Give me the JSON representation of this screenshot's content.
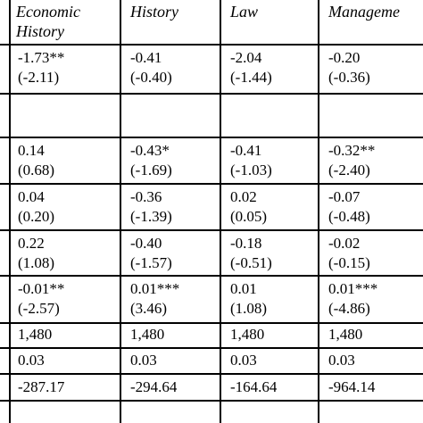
{
  "table": {
    "headers": [
      "Economic",
      "History",
      "History",
      "Law",
      "Manageme"
    ],
    "rows": [
      {
        "c1": [
          "-1.73**",
          "(-2.11)"
        ],
        "c2": [
          "-0.41",
          "(-0.40)"
        ],
        "c3": [
          "-2.04",
          "(-1.44)"
        ],
        "c4": [
          "-0.20",
          "(-0.36)"
        ]
      },
      {
        "c1": [
          "",
          ""
        ],
        "c2": [
          "",
          ""
        ],
        "c3": [
          "",
          ""
        ],
        "c4": [
          "",
          ""
        ]
      },
      {
        "c1": [
          "0.14",
          "(0.68)"
        ],
        "c2": [
          "-0.43*",
          "(-1.69)"
        ],
        "c3": [
          "-0.41",
          "(-1.03)"
        ],
        "c4": [
          "-0.32**",
          "(-2.40)"
        ]
      },
      {
        "c1": [
          "0.04",
          "(0.20)"
        ],
        "c2": [
          "-0.36",
          "(-1.39)"
        ],
        "c3": [
          "0.02",
          "(0.05)"
        ],
        "c4": [
          "-0.07",
          "(-0.48)"
        ]
      },
      {
        "c1": [
          "0.22",
          "(1.08)"
        ],
        "c2": [
          "-0.40",
          "(-1.57)"
        ],
        "c3": [
          "-0.18",
          "(-0.51)"
        ],
        "c4": [
          "-0.02",
          "(-0.15)"
        ]
      },
      {
        "c1": [
          "-0.01**",
          "(-2.57)"
        ],
        "c2": [
          "0.01***",
          "(3.46)"
        ],
        "c3": [
          "0.01",
          "(1.08)"
        ],
        "c4": [
          "0.01***",
          "(-4.86)"
        ]
      },
      {
        "c1": [
          "1,480"
        ],
        "c2": [
          "1,480"
        ],
        "c3": [
          "1,480"
        ],
        "c4": [
          "1,480"
        ]
      },
      {
        "c1": [
          "0.03"
        ],
        "c2": [
          "0.03"
        ],
        "c3": [
          "0.03"
        ],
        "c4": [
          "0.03"
        ]
      },
      {
        "c1": [
          "-287.17"
        ],
        "c2": [
          "-294.64"
        ],
        "c3": [
          "-164.64"
        ],
        "c4": [
          "-964.14"
        ]
      }
    ]
  }
}
